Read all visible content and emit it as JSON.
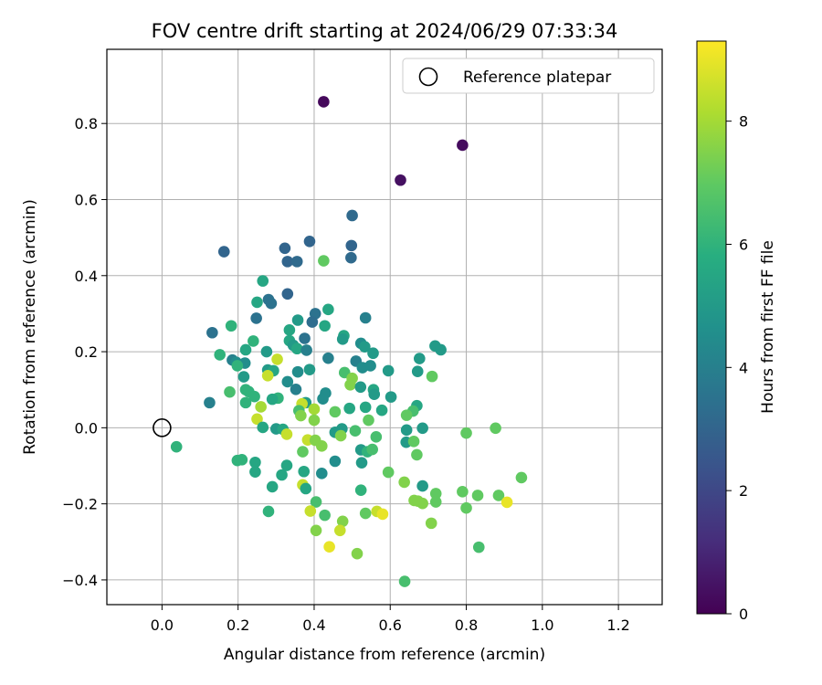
{
  "chart_data": {
    "type": "scatter",
    "title": "FOV centre drift starting at 2024/06/29 07:33:34",
    "xlabel": "Angular distance from reference (arcmin)",
    "ylabel": "Rotation from reference (arcmin)",
    "xlim": [
      -0.145,
      1.315
    ],
    "ylim": [
      -0.465,
      0.995
    ],
    "xticks": [
      "0.0",
      "0.2",
      "0.4",
      "0.6",
      "0.8",
      "1.0",
      "1.2"
    ],
    "yticks": [
      "−0.4",
      "−0.2",
      "0.0",
      "0.2",
      "0.4",
      "0.6",
      "0.8"
    ],
    "grid": true,
    "legend": {
      "placement": "top-right",
      "label": "Reference platepar",
      "marker": "open-circle"
    },
    "reference_point": {
      "x": 0.0,
      "y": 0.0
    },
    "colorbar": {
      "label": "Hours from first FF file",
      "range": [
        0,
        9.3
      ],
      "ticks": [
        "0",
        "2",
        "4",
        "6",
        "8"
      ],
      "colormap": "viridis"
    },
    "points": [
      {
        "x": 0.425,
        "y": 0.857,
        "h": 0.2
      },
      {
        "x": 0.79,
        "y": 0.743,
        "h": 0.3
      },
      {
        "x": 0.627,
        "y": 0.651,
        "h": 0.4
      },
      {
        "x": 0.5,
        "y": 0.558,
        "h": 3.2
      },
      {
        "x": 0.163,
        "y": 0.463,
        "h": 3.0
      },
      {
        "x": 0.388,
        "y": 0.49,
        "h": 3.0
      },
      {
        "x": 0.498,
        "y": 0.479,
        "h": 3.0
      },
      {
        "x": 0.323,
        "y": 0.472,
        "h": 3.0
      },
      {
        "x": 0.497,
        "y": 0.447,
        "h": 3.2
      },
      {
        "x": 0.33,
        "y": 0.437,
        "h": 3.0
      },
      {
        "x": 0.355,
        "y": 0.437,
        "h": 3.2
      },
      {
        "x": 0.425,
        "y": 0.439,
        "h": 7.0
      },
      {
        "x": 0.265,
        "y": 0.386,
        "h": 5.5
      },
      {
        "x": 0.33,
        "y": 0.352,
        "h": 3.0
      },
      {
        "x": 0.28,
        "y": 0.337,
        "h": 3.5
      },
      {
        "x": 0.25,
        "y": 0.33,
        "h": 5.5
      },
      {
        "x": 0.287,
        "y": 0.327,
        "h": 3.5
      },
      {
        "x": 0.437,
        "y": 0.311,
        "h": 5.5
      },
      {
        "x": 0.403,
        "y": 0.3,
        "h": 3.5
      },
      {
        "x": 0.535,
        "y": 0.289,
        "h": 4.0
      },
      {
        "x": 0.248,
        "y": 0.288,
        "h": 3.5
      },
      {
        "x": 0.395,
        "y": 0.278,
        "h": 3.3
      },
      {
        "x": 0.357,
        "y": 0.283,
        "h": 5.0
      },
      {
        "x": 0.182,
        "y": 0.268,
        "h": 6.0
      },
      {
        "x": 0.428,
        "y": 0.268,
        "h": 5.5
      },
      {
        "x": 0.335,
        "y": 0.257,
        "h": 5.5
      },
      {
        "x": 0.132,
        "y": 0.25,
        "h": 3.5
      },
      {
        "x": 0.478,
        "y": 0.242,
        "h": 5.5
      },
      {
        "x": 0.475,
        "y": 0.233,
        "h": 5.0
      },
      {
        "x": 0.375,
        "y": 0.235,
        "h": 3.5
      },
      {
        "x": 0.335,
        "y": 0.229,
        "h": 5.5
      },
      {
        "x": 0.24,
        "y": 0.228,
        "h": 6.0
      },
      {
        "x": 0.345,
        "y": 0.217,
        "h": 5.0
      },
      {
        "x": 0.523,
        "y": 0.222,
        "h": 4.5
      },
      {
        "x": 0.533,
        "y": 0.213,
        "h": 5.0
      },
      {
        "x": 0.718,
        "y": 0.215,
        "h": 5.0
      },
      {
        "x": 0.733,
        "y": 0.205,
        "h": 5.0
      },
      {
        "x": 0.22,
        "y": 0.205,
        "h": 5.5
      },
      {
        "x": 0.355,
        "y": 0.208,
        "h": 5.5
      },
      {
        "x": 0.38,
        "y": 0.204,
        "h": 4.0
      },
      {
        "x": 0.555,
        "y": 0.196,
        "h": 5.0
      },
      {
        "x": 0.152,
        "y": 0.192,
        "h": 6.0
      },
      {
        "x": 0.275,
        "y": 0.2,
        "h": 5.0
      },
      {
        "x": 0.677,
        "y": 0.182,
        "h": 5.0
      },
      {
        "x": 0.437,
        "y": 0.183,
        "h": 4.0
      },
      {
        "x": 0.303,
        "y": 0.18,
        "h": 8.5
      },
      {
        "x": 0.185,
        "y": 0.178,
        "h": 4.0
      },
      {
        "x": 0.195,
        "y": 0.172,
        "h": 4.5
      },
      {
        "x": 0.218,
        "y": 0.17,
        "h": 4.5
      },
      {
        "x": 0.51,
        "y": 0.175,
        "h": 4.0
      },
      {
        "x": 0.198,
        "y": 0.163,
        "h": 6.0
      },
      {
        "x": 0.548,
        "y": 0.163,
        "h": 4.5
      },
      {
        "x": 0.527,
        "y": 0.158,
        "h": 4.5
      },
      {
        "x": 0.278,
        "y": 0.152,
        "h": 5.0
      },
      {
        "x": 0.388,
        "y": 0.153,
        "h": 5.0
      },
      {
        "x": 0.357,
        "y": 0.147,
        "h": 4.5
      },
      {
        "x": 0.293,
        "y": 0.15,
        "h": 5.5
      },
      {
        "x": 0.48,
        "y": 0.145,
        "h": 6.5
      },
      {
        "x": 0.595,
        "y": 0.15,
        "h": 5.0
      },
      {
        "x": 0.672,
        "y": 0.148,
        "h": 5.0
      },
      {
        "x": 0.71,
        "y": 0.135,
        "h": 7.0
      },
      {
        "x": 0.278,
        "y": 0.137,
        "h": 8.5
      },
      {
        "x": 0.215,
        "y": 0.134,
        "h": 5.0
      },
      {
        "x": 0.5,
        "y": 0.13,
        "h": 7.5
      },
      {
        "x": 0.33,
        "y": 0.121,
        "h": 4.5
      },
      {
        "x": 0.495,
        "y": 0.113,
        "h": 7.5
      },
      {
        "x": 0.522,
        "y": 0.107,
        "h": 5.0
      },
      {
        "x": 0.352,
        "y": 0.101,
        "h": 4.0
      },
      {
        "x": 0.22,
        "y": 0.1,
        "h": 6.0
      },
      {
        "x": 0.556,
        "y": 0.1,
        "h": 5.5
      },
      {
        "x": 0.178,
        "y": 0.094,
        "h": 6.5
      },
      {
        "x": 0.228,
        "y": 0.095,
        "h": 6.0
      },
      {
        "x": 0.43,
        "y": 0.091,
        "h": 4.5
      },
      {
        "x": 0.558,
        "y": 0.088,
        "h": 5.0
      },
      {
        "x": 0.243,
        "y": 0.082,
        "h": 6.0
      },
      {
        "x": 0.602,
        "y": 0.081,
        "h": 5.0
      },
      {
        "x": 0.305,
        "y": 0.078,
        "h": 6.0
      },
      {
        "x": 0.423,
        "y": 0.076,
        "h": 4.5
      },
      {
        "x": 0.29,
        "y": 0.075,
        "h": 5.5
      },
      {
        "x": 0.125,
        "y": 0.066,
        "h": 4.0
      },
      {
        "x": 0.22,
        "y": 0.066,
        "h": 6.0
      },
      {
        "x": 0.378,
        "y": 0.066,
        "h": 5.0
      },
      {
        "x": 0.368,
        "y": 0.063,
        "h": 8.5
      },
      {
        "x": 0.67,
        "y": 0.058,
        "h": 5.5
      },
      {
        "x": 0.26,
        "y": 0.055,
        "h": 8.0
      },
      {
        "x": 0.535,
        "y": 0.054,
        "h": 5.5
      },
      {
        "x": 0.493,
        "y": 0.051,
        "h": 5.5
      },
      {
        "x": 0.4,
        "y": 0.049,
        "h": 8.0
      },
      {
        "x": 0.36,
        "y": 0.045,
        "h": 6.5
      },
      {
        "x": 0.578,
        "y": 0.046,
        "h": 5.5
      },
      {
        "x": 0.455,
        "y": 0.042,
        "h": 7.0
      },
      {
        "x": 0.66,
        "y": 0.044,
        "h": 6.5
      },
      {
        "x": 0.643,
        "y": 0.033,
        "h": 7.0
      },
      {
        "x": 0.365,
        "y": 0.032,
        "h": 7.5
      },
      {
        "x": 0.25,
        "y": 0.023,
        "h": 8.5
      },
      {
        "x": 0.4,
        "y": 0.02,
        "h": 7.5
      },
      {
        "x": 0.543,
        "y": 0.02,
        "h": 7.0
      },
      {
        "x": 0.265,
        "y": 0.001,
        "h": 5.5
      },
      {
        "x": 0.3,
        "y": -0.003,
        "h": 5.0
      },
      {
        "x": 0.318,
        "y": -0.004,
        "h": 5.5
      },
      {
        "x": 0.473,
        "y": -0.003,
        "h": 5.0
      },
      {
        "x": 0.508,
        "y": -0.008,
        "h": 6.5
      },
      {
        "x": 0.455,
        "y": -0.012,
        "h": 5.0
      },
      {
        "x": 0.643,
        "y": -0.006,
        "h": 5.0
      },
      {
        "x": 0.685,
        "y": -0.001,
        "h": 5.0
      },
      {
        "x": 0.877,
        "y": -0.001,
        "h": 7.0
      },
      {
        "x": 0.8,
        "y": -0.014,
        "h": 7.0
      },
      {
        "x": 0.328,
        "y": -0.017,
        "h": 8.5
      },
      {
        "x": 0.47,
        "y": -0.021,
        "h": 7.5
      },
      {
        "x": 0.563,
        "y": -0.024,
        "h": 6.5
      },
      {
        "x": 0.383,
        "y": -0.032,
        "h": 8.5
      },
      {
        "x": 0.403,
        "y": -0.033,
        "h": 7.5
      },
      {
        "x": 0.642,
        "y": -0.038,
        "h": 5.0
      },
      {
        "x": 0.662,
        "y": -0.036,
        "h": 7.0
      },
      {
        "x": 0.42,
        "y": -0.048,
        "h": 7.5
      },
      {
        "x": 0.038,
        "y": -0.05,
        "h": 6.0
      },
      {
        "x": 0.523,
        "y": -0.058,
        "h": 5.0
      },
      {
        "x": 0.54,
        "y": -0.063,
        "h": 6.0
      },
      {
        "x": 0.553,
        "y": -0.057,
        "h": 6.5
      },
      {
        "x": 0.37,
        "y": -0.063,
        "h": 7.0
      },
      {
        "x": 0.67,
        "y": -0.071,
        "h": 7.0
      },
      {
        "x": 0.21,
        "y": -0.084,
        "h": 6.0
      },
      {
        "x": 0.198,
        "y": -0.086,
        "h": 6.0
      },
      {
        "x": 0.245,
        "y": -0.091,
        "h": 5.5
      },
      {
        "x": 0.455,
        "y": -0.088,
        "h": 4.5
      },
      {
        "x": 0.525,
        "y": -0.092,
        "h": 5.0
      },
      {
        "x": 0.328,
        "y": -0.099,
        "h": 5.5
      },
      {
        "x": 0.595,
        "y": -0.117,
        "h": 7.0
      },
      {
        "x": 0.245,
        "y": -0.116,
        "h": 5.5
      },
      {
        "x": 0.373,
        "y": -0.115,
        "h": 5.5
      },
      {
        "x": 0.42,
        "y": -0.12,
        "h": 4.5
      },
      {
        "x": 0.315,
        "y": -0.124,
        "h": 5.5
      },
      {
        "x": 0.945,
        "y": -0.131,
        "h": 7.0
      },
      {
        "x": 0.637,
        "y": -0.143,
        "h": 7.5
      },
      {
        "x": 0.37,
        "y": -0.15,
        "h": 8.5
      },
      {
        "x": 0.29,
        "y": -0.155,
        "h": 5.5
      },
      {
        "x": 0.685,
        "y": -0.153,
        "h": 5.0
      },
      {
        "x": 0.523,
        "y": -0.164,
        "h": 6.0
      },
      {
        "x": 0.378,
        "y": -0.16,
        "h": 5.5
      },
      {
        "x": 0.79,
        "y": -0.168,
        "h": 7.0
      },
      {
        "x": 0.72,
        "y": -0.173,
        "h": 7.0
      },
      {
        "x": 0.83,
        "y": -0.178,
        "h": 7.0
      },
      {
        "x": 0.885,
        "y": -0.178,
        "h": 7.0
      },
      {
        "x": 0.663,
        "y": -0.191,
        "h": 7.5
      },
      {
        "x": 0.673,
        "y": -0.193,
        "h": 7.5
      },
      {
        "x": 0.685,
        "y": -0.199,
        "h": 7.5
      },
      {
        "x": 0.405,
        "y": -0.195,
        "h": 6.5
      },
      {
        "x": 0.72,
        "y": -0.195,
        "h": 7.0
      },
      {
        "x": 0.907,
        "y": -0.196,
        "h": 9.0
      },
      {
        "x": 0.8,
        "y": -0.211,
        "h": 7.0
      },
      {
        "x": 0.28,
        "y": -0.22,
        "h": 6.0
      },
      {
        "x": 0.39,
        "y": -0.219,
        "h": 8.5
      },
      {
        "x": 0.565,
        "y": -0.22,
        "h": 8.5
      },
      {
        "x": 0.535,
        "y": -0.225,
        "h": 7.0
      },
      {
        "x": 0.58,
        "y": -0.227,
        "h": 9.0
      },
      {
        "x": 0.428,
        "y": -0.23,
        "h": 6.5
      },
      {
        "x": 0.475,
        "y": -0.246,
        "h": 7.5
      },
      {
        "x": 0.708,
        "y": -0.251,
        "h": 7.5
      },
      {
        "x": 0.405,
        "y": -0.27,
        "h": 7.5
      },
      {
        "x": 0.468,
        "y": -0.27,
        "h": 8.5
      },
      {
        "x": 0.833,
        "y": -0.314,
        "h": 6.5
      },
      {
        "x": 0.44,
        "y": -0.313,
        "h": 9.0
      },
      {
        "x": 0.513,
        "y": -0.331,
        "h": 7.5
      },
      {
        "x": 0.638,
        "y": -0.404,
        "h": 6.5
      }
    ]
  }
}
